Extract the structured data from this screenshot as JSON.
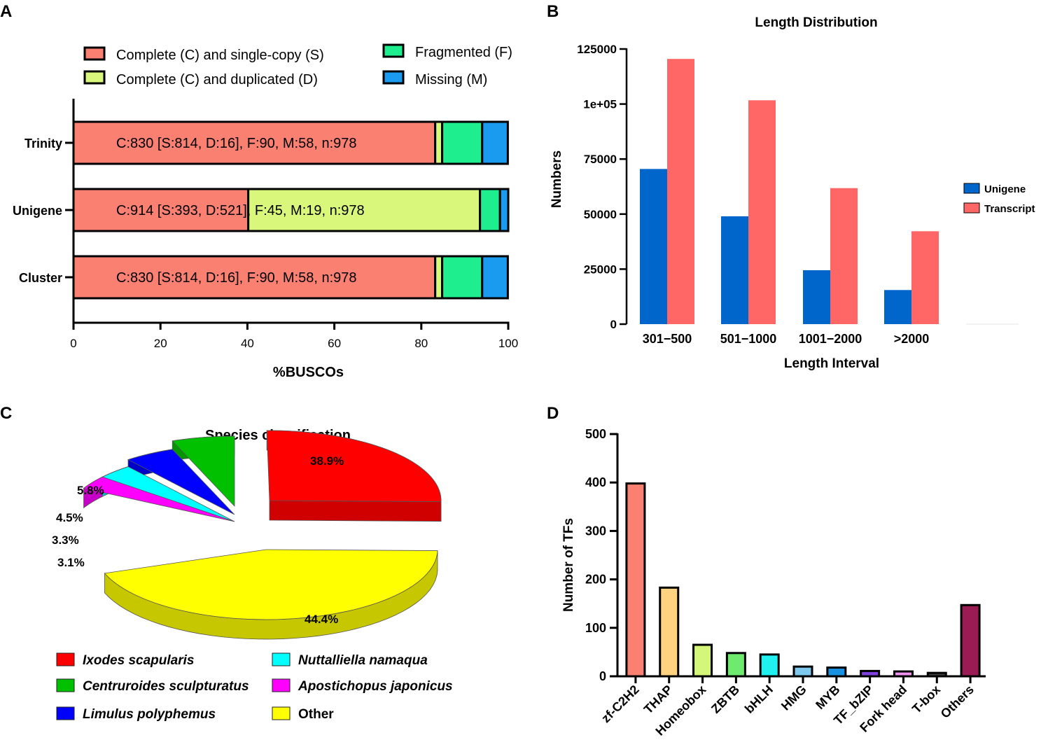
{
  "chart_data": [
    {
      "panel": "A",
      "type": "bar",
      "orientation": "horizontal",
      "stacked": true,
      "xlabel": "%BUSCOs",
      "xlim": [
        0,
        100
      ],
      "xticks": [
        0,
        20,
        40,
        60,
        80,
        100
      ],
      "categories": [
        "Trinity",
        "Unigene",
        "Cluster"
      ],
      "series": [
        {
          "name": "Complete (C) and single-copy (S)",
          "values": [
            83.2,
            40.2,
            83.2
          ],
          "color": "#FA8072"
        },
        {
          "name": "Complete (C) and duplicated (D)",
          "values": [
            1.6,
            53.3,
            1.6
          ],
          "color": "#D9F77A"
        },
        {
          "name": "Fragmented (F)",
          "values": [
            9.2,
            4.6,
            9.2
          ],
          "color": "#1FEE8F"
        },
        {
          "name": "Missing (M)",
          "values": [
            5.9,
            1.9,
            5.9
          ],
          "color": "#1A9BF0"
        }
      ],
      "legend": [
        "Complete (C) and single-copy (S)",
        "Complete (C) and duplicated (D)",
        "Fragmented (F)",
        "Missing (M)"
      ],
      "annotations": [
        "C:830 [S:814, D:16], F:90, M:58, n:978",
        "C:914 [S:393, D:521], F:45, M:19, n:978",
        "C:830 [S:814, D:16], F:90, M:58, n:978"
      ]
    },
    {
      "panel": "B",
      "type": "bar",
      "title": "Length Distribution",
      "xlabel": "Length Interval",
      "ylabel": "Numbers",
      "ylim": [
        0,
        125000
      ],
      "yticks": [
        0,
        25000,
        50000,
        75000,
        100000,
        125000
      ],
      "ytick_labels": [
        "0",
        "25000",
        "50000",
        "75000",
        "1e+05",
        "125000"
      ],
      "categories": [
        "301−500",
        "501−1000",
        "1001−2000",
        ">2000"
      ],
      "series": [
        {
          "name": "Unigene",
          "values": [
            70500,
            49000,
            24500,
            15500
          ],
          "color": "#0066CC"
        },
        {
          "name": "Transcript",
          "values": [
            120500,
            101700,
            61800,
            42200
          ],
          "color": "#FF6666"
        }
      ],
      "legend_position": "right"
    },
    {
      "panel": "C",
      "type": "pie",
      "title": "Species classification",
      "labels": [
        "Ixodes scapularis",
        "Centruroides sculpturatus",
        "Limulus polyphemus",
        "Nuttalliella namaqua",
        "Apostichopus japonicus",
        "Other"
      ],
      "values": [
        38.9,
        5.8,
        4.5,
        3.3,
        3.1,
        44.4
      ],
      "value_labels": [
        "38.9%",
        "5.8%",
        "4.5%",
        "3.3%",
        "3.1%",
        "44.4%"
      ],
      "colors": [
        "#FF0000",
        "#00C000",
        "#0000FF",
        "#00FFFF",
        "#FF00FF",
        "#FFFF00"
      ]
    },
    {
      "panel": "D",
      "type": "bar",
      "ylabel": "Number of TFs",
      "ylim": [
        0,
        500
      ],
      "yticks": [
        0,
        100,
        200,
        300,
        400,
        500
      ],
      "categories": [
        "zf-C2H2",
        "THAP",
        "Homeobox",
        "ZBTB",
        "bHLH",
        "HMG",
        "MYB",
        "TF_bZIP",
        "Fork head",
        "T-box",
        "Others"
      ],
      "values": [
        398,
        183,
        65,
        48,
        45,
        20,
        18,
        11,
        10,
        7,
        147
      ],
      "colors": [
        "#FA8072",
        "#FFD280",
        "#D4F77A",
        "#6EEB6E",
        "#20F0F0",
        "#7EC8EE",
        "#1A90E0",
        "#8040E0",
        "#F090F0",
        "#404040",
        "#9B1B54"
      ]
    }
  ]
}
